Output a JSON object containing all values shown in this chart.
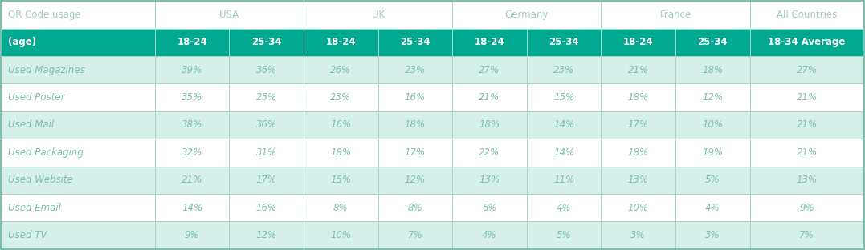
{
  "col_labels_row1": [
    "QR Code usage",
    "USA",
    "UK",
    "Germany",
    "France",
    "All Countries"
  ],
  "header_row2": [
    "(age)",
    "18-24",
    "25-34",
    "18-24",
    "25-34",
    "18-24",
    "25-34",
    "18-24",
    "25-34",
    "18-34 Average"
  ],
  "rows": [
    [
      "Used Magazines",
      "39%",
      "36%",
      "26%",
      "23%",
      "27%",
      "23%",
      "21%",
      "18%",
      "27%"
    ],
    [
      "Used Poster",
      "35%",
      "25%",
      "23%",
      "16%",
      "21%",
      "15%",
      "18%",
      "12%",
      "21%"
    ],
    [
      "Used Mail",
      "38%",
      "36%",
      "16%",
      "18%",
      "18%",
      "14%",
      "17%",
      "10%",
      "21%"
    ],
    [
      "Used Packaging",
      "32%",
      "31%",
      "18%",
      "17%",
      "22%",
      "14%",
      "18%",
      "19%",
      "21%"
    ],
    [
      "Used Website",
      "21%",
      "17%",
      "15%",
      "12%",
      "13%",
      "11%",
      "13%",
      "5%",
      "13%"
    ],
    [
      "Used Email",
      "14%",
      "16%",
      "8%",
      "8%",
      "6%",
      "4%",
      "10%",
      "4%",
      "9%"
    ],
    [
      "Used TV",
      "9%",
      "12%",
      "10%",
      "7%",
      "4%",
      "5%",
      "3%",
      "3%",
      "7%"
    ]
  ],
  "header1_bg": "#ffffff",
  "header1_text": "#9ecfbf",
  "header2_bg": "#00a990",
  "header2_text": "#ffffff",
  "row_odd_bg": "#d5f0e8",
  "row_even_bg": "#ffffff",
  "row_text": "#7fbfb0",
  "border_color": "#aad4c8",
  "outer_border_color": "#7fbfb0",
  "figsize": [
    10.77,
    3.12
  ],
  "dpi": 100
}
